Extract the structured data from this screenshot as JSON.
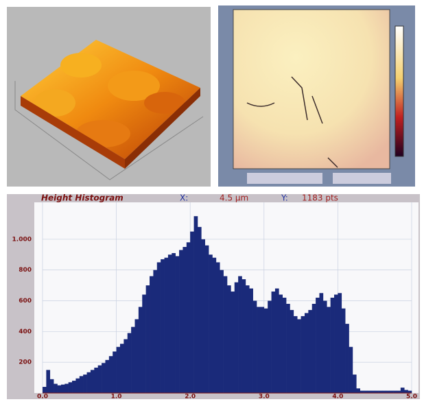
{
  "chart_data": {
    "type": "histogram",
    "title": "Height Histogram",
    "annotations": [
      "X:",
      "4.5 µm",
      "Y:",
      "1183 pts"
    ],
    "color": "#1a2a7a",
    "grid": true,
    "bins": [
      0,
      0.05,
      0.1,
      0.15,
      0.2,
      0.25,
      0.3,
      0.35,
      0.4,
      0.45,
      0.5,
      0.55,
      0.6,
      0.65,
      0.7,
      0.75,
      0.8,
      0.85,
      0.9,
      0.95,
      1,
      1.05,
      1.1,
      1.15,
      1.2,
      1.25,
      1.3,
      1.35,
      1.4,
      1.45,
      1.5,
      1.55,
      1.6,
      1.65,
      1.7,
      1.75,
      1.8,
      1.85,
      1.9,
      1.95,
      2,
      2.05,
      2.1,
      2.15,
      2.2,
      2.25,
      2.3,
      2.35,
      2.4,
      2.45,
      2.5,
      2.55,
      2.6,
      2.65,
      2.7,
      2.75,
      2.8,
      2.85,
      2.9,
      2.95,
      3,
      3.05,
      3.1,
      3.15,
      3.2,
      3.25,
      3.3,
      3.35,
      3.4,
      3.45,
      3.5,
      3.55,
      3.6,
      3.65,
      3.7,
      3.75,
      3.8,
      3.85,
      3.9,
      3.95,
      4,
      4.05,
      4.1,
      4.15,
      4.2,
      4.25,
      4.3,
      4.35,
      4.4,
      4.45,
      4.5,
      4.55,
      4.6,
      4.65,
      4.7,
      4.75,
      4.8,
      4.85,
      4.9,
      4.95,
      5
    ],
    "counts": [
      40,
      150,
      90,
      60,
      50,
      55,
      60,
      70,
      80,
      95,
      110,
      120,
      135,
      150,
      165,
      180,
      195,
      215,
      240,
      270,
      300,
      320,
      350,
      390,
      430,
      480,
      560,
      640,
      700,
      760,
      800,
      850,
      870,
      880,
      900,
      910,
      890,
      930,
      950,
      980,
      1050,
      1150,
      1080,
      1000,
      960,
      900,
      880,
      850,
      800,
      760,
      700,
      660,
      720,
      760,
      740,
      700,
      680,
      600,
      560,
      560,
      550,
      600,
      660,
      680,
      640,
      620,
      580,
      540,
      500,
      480,
      500,
      520,
      540,
      580,
      620,
      650,
      600,
      560,
      620,
      640,
      650,
      550,
      450,
      300,
      120,
      30,
      15,
      15,
      15,
      15,
      15,
      15,
      15,
      15,
      15,
      15,
      15,
      35,
      20,
      15
    ],
    "xlim": [
      0,
      5
    ],
    "ylim": [
      0,
      1240
    ],
    "xticks": [
      {
        "value": 0,
        "label": "0.0"
      },
      {
        "value": 1,
        "label": "1.0"
      },
      {
        "value": 2,
        "label": "2.0"
      },
      {
        "value": 3,
        "label": "3.0"
      },
      {
        "value": 4,
        "label": "4.0"
      },
      {
        "value": 5,
        "label": "5.0"
      }
    ],
    "yticks": [
      200,
      400,
      600,
      800,
      {
        "value": 1000,
        "label": "1.000"
      }
    ]
  }
}
